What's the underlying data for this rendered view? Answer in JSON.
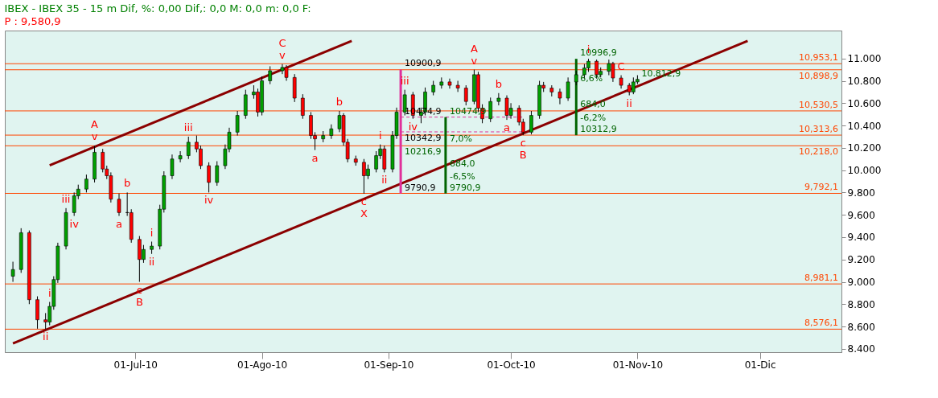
{
  "chart_data": {
    "type": "candlestick",
    "title": "IBEX - IBEX 35 -  15 m Dif, %: 0,00 Dif,: 0,0 M: 0,0 m: 0,0 F:",
    "subtitle": "P : 9,580,9",
    "x": [
      "2010-06-01",
      "2010-06-03",
      "2010-06-05",
      "2010-06-07",
      "2010-06-09",
      "2010-06-10",
      "2010-06-11",
      "2010-06-12",
      "2010-06-14",
      "2010-06-16",
      "2010-06-17",
      "2010-06-19",
      "2010-06-21",
      "2010-06-23",
      "2010-06-24",
      "2010-06-25",
      "2010-06-27",
      "2010-06-29",
      "2010-06-30",
      "2010-07-02",
      "2010-07-03",
      "2010-07-05",
      "2010-07-07",
      "2010-07-08",
      "2010-07-10",
      "2010-07-12",
      "2010-07-14",
      "2010-07-16",
      "2010-07-17",
      "2010-07-19",
      "2010-07-21",
      "2010-07-23",
      "2010-07-24",
      "2010-07-26",
      "2010-07-28",
      "2010-07-30",
      "2010-07-31",
      "2010-08-01",
      "2010-08-03",
      "2010-08-06",
      "2010-08-07",
      "2010-08-09",
      "2010-08-11",
      "2010-08-13",
      "2010-08-14",
      "2010-08-16",
      "2010-08-18",
      "2010-08-20",
      "2010-08-21",
      "2010-08-22",
      "2010-08-24",
      "2010-08-26",
      "2010-08-27",
      "2010-08-29",
      "2010-08-30",
      "2010-08-31",
      "2010-09-02",
      "2010-09-03",
      "2010-09-05",
      "2010-09-07",
      "2010-09-09",
      "2010-09-10",
      "2010-09-12",
      "2010-09-14",
      "2010-09-16",
      "2010-09-18",
      "2010-09-20",
      "2010-09-22",
      "2010-09-23",
      "2010-09-24",
      "2010-09-26",
      "2010-09-28",
      "2010-09-30",
      "2010-10-01",
      "2010-10-03",
      "2010-10-04",
      "2010-10-06",
      "2010-10-08",
      "2010-10-09",
      "2010-10-11",
      "2010-10-13",
      "2010-10-15",
      "2010-10-17",
      "2010-10-19",
      "2010-10-20",
      "2010-10-22",
      "2010-10-23",
      "2010-10-25",
      "2010-10-26",
      "2010-10-28",
      "2010-10-30",
      "2010-10-31",
      "2010-11-01"
    ],
    "ohlc": [
      [
        9050,
        9180,
        9000,
        9110
      ],
      [
        9110,
        9480,
        9080,
        9440
      ],
      [
        9440,
        9460,
        8800,
        8840
      ],
      [
        8840,
        8870,
        8580,
        8660
      ],
      [
        8660,
        8720,
        8576,
        8640
      ],
      [
        8640,
        8820,
        8610,
        8780
      ],
      [
        8780,
        9050,
        8750,
        9020
      ],
      [
        9020,
        9350,
        8990,
        9320
      ],
      [
        9320,
        9660,
        9290,
        9620
      ],
      [
        9620,
        9800,
        9590,
        9770
      ],
      [
        9770,
        9870,
        9740,
        9830
      ],
      [
        9830,
        9960,
        9800,
        9920
      ],
      [
        9920,
        10218,
        9890,
        10160
      ],
      [
        10160,
        10190,
        9980,
        10010
      ],
      [
        10010,
        10040,
        9920,
        9950
      ],
      [
        9950,
        9980,
        9710,
        9740
      ],
      [
        9740,
        9790,
        9590,
        9620
      ],
      [
        9620,
        9800,
        9590,
        9620
      ],
      [
        9620,
        9650,
        9350,
        9380
      ],
      [
        9380,
        9410,
        9000,
        9200
      ],
      [
        9200,
        9330,
        9170,
        9290
      ],
      [
        9290,
        9360,
        9250,
        9320
      ],
      [
        9320,
        9690,
        9290,
        9650
      ],
      [
        9650,
        9990,
        9620,
        9950
      ],
      [
        9950,
        10140,
        9920,
        10100
      ],
      [
        10100,
        10170,
        10070,
        10130
      ],
      [
        10130,
        10300,
        10100,
        10250
      ],
      [
        10250,
        10310,
        10160,
        10190
      ],
      [
        10190,
        10220,
        10010,
        10040
      ],
      [
        10040,
        10070,
        9800,
        9890
      ],
      [
        9890,
        10080,
        9860,
        10040
      ],
      [
        10040,
        10230,
        10010,
        10190
      ],
      [
        10190,
        10380,
        10160,
        10340
      ],
      [
        10340,
        10530,
        10310,
        10490
      ],
      [
        10490,
        10720,
        10460,
        10675
      ],
      [
        10675,
        10760,
        10640,
        10700
      ],
      [
        10700,
        10730,
        10480,
        10520
      ],
      [
        10520,
        10840,
        10490,
        10800
      ],
      [
        10800,
        10930,
        10770,
        10890
      ],
      [
        10890,
        10950,
        10860,
        10920
      ],
      [
        10920,
        10940,
        10800,
        10830
      ],
      [
        10830,
        10860,
        10610,
        10645
      ],
      [
        10645,
        10680,
        10460,
        10490
      ],
      [
        10490,
        10520,
        10280,
        10310
      ],
      [
        10310,
        10340,
        10180,
        10280
      ],
      [
        10280,
        10350,
        10250,
        10310
      ],
      [
        10310,
        10410,
        10280,
        10370
      ],
      [
        10370,
        10530,
        10340,
        10490
      ],
      [
        10490,
        10510,
        10220,
        10250
      ],
      [
        10250,
        10280,
        10070,
        10100
      ],
      [
        10100,
        10130,
        10040,
        10070
      ],
      [
        10070,
        10100,
        9790,
        9950
      ],
      [
        9950,
        10050,
        9920,
        10010
      ],
      [
        10010,
        10170,
        9980,
        10130
      ],
      [
        10130,
        10230,
        10100,
        10190
      ],
      [
        10190,
        10220,
        9980,
        10010
      ],
      [
        10010,
        10350,
        9980,
        10310
      ],
      [
        10310,
        10560,
        10280,
        10520
      ],
      [
        10520,
        10720,
        10490,
        10675
      ],
      [
        10675,
        10700,
        10460,
        10490
      ],
      [
        10490,
        10560,
        10420,
        10520
      ],
      [
        10520,
        10740,
        10490,
        10700
      ],
      [
        10700,
        10800,
        10670,
        10760
      ],
      [
        10760,
        10830,
        10730,
        10790
      ],
      [
        10790,
        10820,
        10730,
        10760
      ],
      [
        10760,
        10800,
        10700,
        10735
      ],
      [
        10735,
        10760,
        10580,
        10615
      ],
      [
        10615,
        10900,
        10590,
        10855
      ],
      [
        10855,
        10880,
        10520,
        10555
      ],
      [
        10555,
        10590,
        10420,
        10460
      ],
      [
        10460,
        10650,
        10430,
        10615
      ],
      [
        10615,
        10690,
        10580,
        10645
      ],
      [
        10645,
        10670,
        10450,
        10490
      ],
      [
        10490,
        10600,
        10460,
        10555
      ],
      [
        10555,
        10580,
        10400,
        10430
      ],
      [
        10430,
        10460,
        10313,
        10340
      ],
      [
        10340,
        10530,
        10320,
        10490
      ],
      [
        10490,
        10800,
        10460,
        10760
      ],
      [
        10760,
        10790,
        10700,
        10735
      ],
      [
        10735,
        10760,
        10660,
        10700
      ],
      [
        10700,
        10730,
        10590,
        10645
      ],
      [
        10645,
        10830,
        10620,
        10790
      ],
      [
        10790,
        10890,
        10760,
        10855
      ],
      [
        10855,
        10950,
        10820,
        10915
      ],
      [
        10915,
        10997,
        10880,
        10975
      ],
      [
        10975,
        10990,
        10820,
        10855
      ],
      [
        10855,
        10920,
        10830,
        10885
      ],
      [
        10885,
        10990,
        10850,
        10955
      ],
      [
        10955,
        10970,
        10790,
        10825
      ],
      [
        10825,
        10850,
        10730,
        10760
      ],
      [
        10760,
        10780,
        10670,
        10700
      ],
      [
        10700,
        10830,
        10680,
        10790
      ],
      [
        10790,
        10850,
        10770,
        10812.9
      ]
    ],
    "series": [
      {
        "type": "line",
        "color": "#8b0000",
        "x": [
          "2010-06-10",
          "2010-08-23"
        ],
        "values": [
          10043,
          11157
        ]
      },
      {
        "type": "line",
        "color": "#8b0000",
        "x": [
          "2010-06-01",
          "2010-11-28"
        ],
        "values": [
          8448,
          11157
        ]
      },
      {
        "type": "line",
        "color": "#e0309a",
        "x": [
          "2010-09-04",
          "2010-09-04"
        ],
        "values": [
          10900.9,
          9790.9
        ]
      },
      {
        "type": "line",
        "color": "#e0309a",
        "line_style": "dashed",
        "x": [
          "2010-09-04",
          "2010-10-04"
        ],
        "values": [
          10474.9,
          10474.9
        ]
      },
      {
        "type": "line",
        "color": "#e0309a",
        "line_style": "dashed",
        "x": [
          "2010-09-04",
          "2010-10-04"
        ],
        "values": [
          10342.9,
          10342.9
        ]
      },
      {
        "type": "line",
        "color": "#006400",
        "x": [
          "2010-09-15",
          "2010-09-15"
        ],
        "values": [
          10474.9,
          9790.9
        ]
      },
      {
        "type": "line",
        "color": "#006400",
        "x": [
          "2010-10-17",
          "2010-10-17"
        ],
        "values": [
          10996.9,
          10312.9
        ]
      }
    ],
    "ref_lines": [
      {
        "axis": "y",
        "value": 10953.1,
        "label": "10,953,1",
        "color": "#ff4500"
      },
      {
        "axis": "y",
        "value": 10898.9,
        "label": "10,898,9",
        "color": "#ff4500"
      },
      {
        "axis": "y",
        "value": 10530.5,
        "label": "10,530,5",
        "color": "#ff4500"
      },
      {
        "axis": "y",
        "value": 10313.6,
        "label": "10,313,6",
        "color": "#ff4500"
      },
      {
        "axis": "y",
        "value": 10218.0,
        "label": "10,218,0",
        "color": "#ff4500"
      },
      {
        "axis": "y",
        "value": 9792.1,
        "label": "9,792,1",
        "color": "#ff4500"
      },
      {
        "axis": "y",
        "value": 8981.1,
        "label": "8,981,1",
        "color": "#ff4500"
      },
      {
        "axis": "y",
        "value": 8576.1,
        "label": "8,576,1",
        "color": "#ff4500"
      }
    ],
    "annotations": [
      {
        "text": "v",
        "x": "2010-06-21",
        "y": 10218
      },
      {
        "text": "A",
        "x": "2010-06-21",
        "y": 10218
      },
      {
        "text": "iii",
        "x": "2010-06-14",
        "y": 9660
      },
      {
        "text": "iv",
        "x": "2010-06-16",
        "y": 9590
      },
      {
        "text": "i",
        "x": "2010-06-10",
        "y": 8820
      },
      {
        "text": "ii",
        "x": "2010-06-09",
        "y": 8576
      },
      {
        "text": "a",
        "x": "2010-06-27",
        "y": 9590
      },
      {
        "text": "b",
        "x": "2010-06-29",
        "y": 9800
      },
      {
        "text": "c",
        "x": "2010-07-02",
        "y": 9000
      },
      {
        "text": "B",
        "x": "2010-07-02",
        "y": 9000
      },
      {
        "text": "i",
        "x": "2010-07-05",
        "y": 9360
      },
      {
        "text": "ii",
        "x": "2010-07-05",
        "y": 9250
      },
      {
        "text": "iii",
        "x": "2010-07-14",
        "y": 10300
      },
      {
        "text": "iv",
        "x": "2010-07-19",
        "y": 9800
      },
      {
        "text": "v",
        "x": "2010-08-06",
        "y": 10950
      },
      {
        "text": "C",
        "x": "2010-08-06",
        "y": 10950
      },
      {
        "text": "b",
        "x": "2010-08-20",
        "y": 10530
      },
      {
        "text": "a",
        "x": "2010-08-14",
        "y": 10180
      },
      {
        "text": "c",
        "x": "2010-08-26",
        "y": 9790
      },
      {
        "text": "X",
        "x": "2010-08-26",
        "y": 9790
      },
      {
        "text": "i",
        "x": "2010-08-30",
        "y": 10230
      },
      {
        "text": "ii",
        "x": "2010-08-31",
        "y": 9980
      },
      {
        "text": "iii",
        "x": "2010-09-05",
        "y": 10720
      },
      {
        "text": "iv",
        "x": "2010-09-07",
        "y": 10460
      },
      {
        "text": "v",
        "x": "2010-09-22",
        "y": 10900
      },
      {
        "text": "A",
        "x": "2010-09-22",
        "y": 10900
      },
      {
        "text": "b",
        "x": "2010-09-28",
        "y": 10690
      },
      {
        "text": "a",
        "x": "2010-09-30",
        "y": 10450
      },
      {
        "text": "c",
        "x": "2010-10-04",
        "y": 10313
      },
      {
        "text": "B",
        "x": "2010-10-04",
        "y": 10313
      },
      {
        "text": "i",
        "x": "2010-10-20",
        "y": 10997
      },
      {
        "text": "C",
        "x": "2010-10-28",
        "y": 10850
      },
      {
        "text": "ii",
        "x": "2010-10-30",
        "y": 10670
      },
      {
        "text": "10900,9",
        "x": "2010-09-04",
        "y": 10900.9
      },
      {
        "text": "10474,9",
        "x": "2010-09-04",
        "y": 10474.9
      },
      {
        "text": "10342,9",
        "x": "2010-09-04",
        "y": 10342.9
      },
      {
        "text": "10216,9",
        "x": "2010-09-04",
        "y": 10216.9
      },
      {
        "text": "9790,9",
        "x": "2010-09-04",
        "y": 9790.9
      },
      {
        "text": "10474,9",
        "x": "2010-09-15",
        "y": 10474.9
      },
      {
        "text": "7,0%",
        "x": "2010-09-15",
        "y": 10230
      },
      {
        "text": "684,0",
        "x": "2010-09-15",
        "y": 10115
      },
      {
        "text": "-6,5%",
        "x": "2010-09-15",
        "y": 10000
      },
      {
        "text": "9790,9",
        "x": "2010-09-15",
        "y": 9790.9
      },
      {
        "text": "10996,9",
        "x": "2010-10-17",
        "y": 10996.9
      },
      {
        "text": "6,6%",
        "x": "2010-10-17",
        "y": 10770
      },
      {
        "text": "684,0",
        "x": "2010-10-17",
        "y": 10645
      },
      {
        "text": "-6,2%",
        "x": "2010-10-17",
        "y": 10525
      },
      {
        "text": "10312,9",
        "x": "2010-10-17",
        "y": 10312.9
      },
      {
        "text": "10.812,9",
        "x": "2010-11-01",
        "y": 10812.9
      }
    ],
    "xlim": [
      "2010-05-31",
      "2010-12-20"
    ],
    "xticks": [
      {
        "value": "2010-07-01",
        "label": "01-Jul-10"
      },
      {
        "value": "2010-08-01",
        "label": "01-Ago-10"
      },
      {
        "value": "2010-09-01",
        "label": "01-Sep-10"
      },
      {
        "value": "2010-10-01",
        "label": "01-Oct-10"
      },
      {
        "value": "2010-11-01",
        "label": "01-Nov-10"
      },
      {
        "value": "2010-12-01",
        "label": "01-Dic"
      }
    ],
    "ylim": [
      8370,
      11250
    ],
    "yticks": [
      {
        "value": 8400,
        "label": "8.400"
      },
      {
        "value": 8600,
        "label": "8.600"
      },
      {
        "value": 8800,
        "label": "8.800"
      },
      {
        "value": 9000,
        "label": "9.000"
      },
      {
        "value": 9200,
        "label": "9.200"
      },
      {
        "value": 9400,
        "label": "9.400"
      },
      {
        "value": 9600,
        "label": "9.600"
      },
      {
        "value": 9800,
        "label": "9.800"
      },
      {
        "value": 10000,
        "label": "10.000"
      },
      {
        "value": 10200,
        "label": "10.200"
      },
      {
        "value": 10400,
        "label": "10.400"
      },
      {
        "value": 10600,
        "label": "10.600"
      },
      {
        "value": 10800,
        "label": "10.800"
      },
      {
        "value": 11000,
        "label": "11.000"
      }
    ],
    "grid": false
  }
}
